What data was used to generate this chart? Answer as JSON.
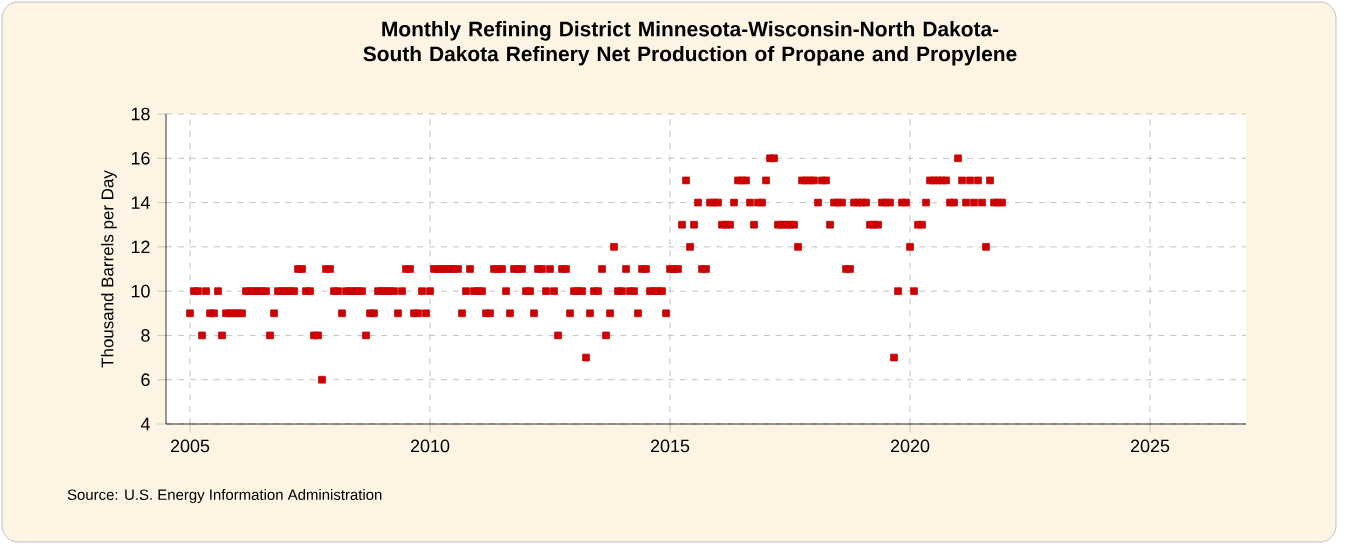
{
  "chart_data": {
    "type": "scatter",
    "title": "Monthly Refining District Minnesota-Wisconsin-North Dakota-South Dakota Refinery Net Production of Propane and Propylene",
    "ylabel": "Thousand Barrels per Day",
    "annotations": [
      "Source: U.S. Energy Information Administration"
    ],
    "xlim": [
      "2004-07",
      "2027-01"
    ],
    "xticks": [
      "2005",
      "2010",
      "2015",
      "2020",
      "2025"
    ],
    "ylim": [
      4,
      18
    ],
    "yticks": [
      4,
      6,
      8,
      10,
      12,
      14,
      16,
      18
    ],
    "grid": true,
    "marker": "square",
    "color": "#cc0000",
    "x": [
      "2005-01",
      "2005-02",
      "2005-03",
      "2005-04",
      "2005-05",
      "2005-06",
      "2005-07",
      "2005-08",
      "2005-09",
      "2005-10",
      "2005-11",
      "2005-12",
      "2006-01",
      "2006-02",
      "2006-03",
      "2006-04",
      "2006-05",
      "2006-06",
      "2006-07",
      "2006-08",
      "2006-09",
      "2006-10",
      "2006-11",
      "2006-12",
      "2007-01",
      "2007-02",
      "2007-03",
      "2007-04",
      "2007-05",
      "2007-06",
      "2007-07",
      "2007-08",
      "2007-09",
      "2007-10",
      "2007-11",
      "2007-12",
      "2008-01",
      "2008-02",
      "2008-03",
      "2008-04",
      "2008-05",
      "2008-06",
      "2008-07",
      "2008-08",
      "2008-09",
      "2008-10",
      "2008-11",
      "2008-12",
      "2009-01",
      "2009-02",
      "2009-03",
      "2009-04",
      "2009-05",
      "2009-06",
      "2009-07",
      "2009-08",
      "2009-09",
      "2009-10",
      "2009-11",
      "2009-12",
      "2010-01",
      "2010-02",
      "2010-03",
      "2010-04",
      "2010-05",
      "2010-06",
      "2010-07",
      "2010-08",
      "2010-09",
      "2010-10",
      "2010-11",
      "2010-12",
      "2011-01",
      "2011-02",
      "2011-03",
      "2011-04",
      "2011-05",
      "2011-06",
      "2011-07",
      "2011-08",
      "2011-09",
      "2011-10",
      "2011-11",
      "2011-12",
      "2012-01",
      "2012-02",
      "2012-03",
      "2012-04",
      "2012-05",
      "2012-06",
      "2012-07",
      "2012-08",
      "2012-09",
      "2012-10",
      "2012-11",
      "2012-12",
      "2013-01",
      "2013-02",
      "2013-03",
      "2013-04",
      "2013-05",
      "2013-06",
      "2013-07",
      "2013-08",
      "2013-09",
      "2013-10",
      "2013-11",
      "2013-12",
      "2014-01",
      "2014-02",
      "2014-03",
      "2014-04",
      "2014-05",
      "2014-06",
      "2014-07",
      "2014-08",
      "2014-09",
      "2014-10",
      "2014-11",
      "2014-12",
      "2015-01",
      "2015-02",
      "2015-03",
      "2015-04",
      "2015-05",
      "2015-06",
      "2015-07",
      "2015-08",
      "2015-09",
      "2015-10",
      "2015-11",
      "2015-12",
      "2016-01",
      "2016-02",
      "2016-03",
      "2016-04",
      "2016-05",
      "2016-06",
      "2016-07",
      "2016-08",
      "2016-09",
      "2016-10",
      "2016-11",
      "2016-12",
      "2017-01",
      "2017-02",
      "2017-03",
      "2017-04",
      "2017-05",
      "2017-06",
      "2017-07",
      "2017-08",
      "2017-09",
      "2017-10",
      "2017-11",
      "2017-12",
      "2018-01",
      "2018-02",
      "2018-03",
      "2018-04",
      "2018-05",
      "2018-06",
      "2018-07",
      "2018-08",
      "2018-09",
      "2018-10",
      "2018-11",
      "2018-12",
      "2019-01",
      "2019-02",
      "2019-03",
      "2019-04",
      "2019-05",
      "2019-06",
      "2019-07",
      "2019-08",
      "2019-09",
      "2019-10",
      "2019-11",
      "2019-12",
      "2020-01",
      "2020-02",
      "2020-03",
      "2020-04",
      "2020-05",
      "2020-06",
      "2020-07",
      "2020-08",
      "2020-09",
      "2020-10",
      "2020-11",
      "2020-12",
      "2021-01",
      "2021-02",
      "2021-03",
      "2021-04",
      "2021-05",
      "2021-06",
      "2021-07",
      "2021-08",
      "2021-09",
      "2021-10",
      "2021-11",
      "2021-12"
    ],
    "values": [
      9,
      10,
      10,
      8,
      10,
      9,
      9,
      10,
      8,
      9,
      9,
      9,
      9,
      9,
      10,
      10,
      10,
      10,
      10,
      10,
      8,
      9,
      10,
      10,
      10,
      10,
      10,
      11,
      11,
      10,
      10,
      8,
      8,
      6,
      11,
      11,
      10,
      10,
      9,
      10,
      10,
      10,
      10,
      10,
      8,
      9,
      9,
      10,
      10,
      10,
      10,
      10,
      9,
      10,
      11,
      11,
      9,
      9,
      10,
      9,
      10,
      11,
      11,
      11,
      11,
      11,
      11,
      11,
      9,
      10,
      11,
      10,
      10,
      10,
      9,
      9,
      11,
      11,
      11,
      10,
      9,
      11,
      11,
      11,
      10,
      10,
      9,
      11,
      11,
      10,
      11,
      10,
      8,
      11,
      11,
      9,
      10,
      10,
      10,
      7,
      9,
      10,
      10,
      11,
      8,
      9,
      12,
      10,
      10,
      11,
      10,
      10,
      9,
      11,
      11,
      10,
      10,
      10,
      10,
      9,
      11,
      11,
      11,
      13,
      15,
      12,
      13,
      14,
      11,
      11,
      14,
      14,
      14,
      13,
      13,
      13,
      14,
      15,
      15,
      15,
      14,
      13,
      14,
      14,
      15,
      16,
      16,
      13,
      13,
      13,
      13,
      13,
      12,
      15,
      15,
      15,
      15,
      14,
      15,
      15,
      13,
      14,
      14,
      14,
      11,
      11,
      14,
      14,
      14,
      14,
      13,
      13,
      13,
      14,
      14,
      14,
      7,
      10,
      14,
      14,
      12,
      10,
      13,
      13,
      14,
      15,
      15,
      15,
      15,
      15,
      14,
      14,
      16,
      15,
      14,
      15,
      14,
      15,
      14,
      12,
      15,
      14,
      14,
      14
    ]
  }
}
